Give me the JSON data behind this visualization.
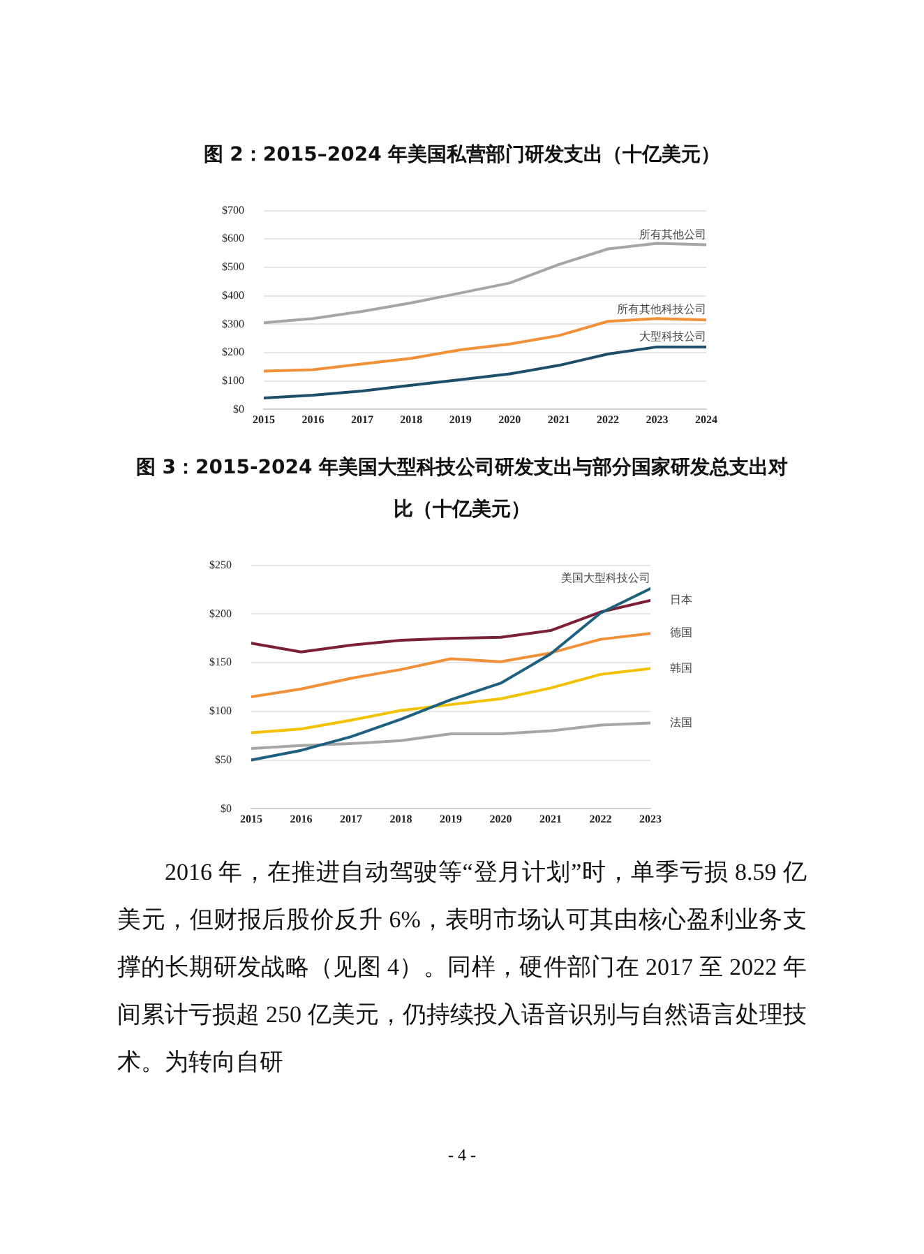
{
  "chart_data": [
    {
      "type": "line",
      "title": "图 2：2015–2024 年美国私营部门研发支出（十亿美元）",
      "x": [
        2015,
        2016,
        2017,
        2018,
        2019,
        2020,
        2021,
        2022,
        2023,
        2024
      ],
      "series": [
        {
          "name": "所有其他公司",
          "color": "#a6a6a6",
          "values": [
            305,
            320,
            345,
            375,
            410,
            445,
            510,
            565,
            585,
            580
          ]
        },
        {
          "name": "所有其他科技公司",
          "color": "#f0913a",
          "values": [
            135,
            140,
            160,
            180,
            210,
            230,
            260,
            310,
            320,
            315
          ]
        },
        {
          "name": "大型科技公司",
          "color": "#1f4e6b",
          "values": [
            40,
            50,
            65,
            85,
            105,
            125,
            155,
            195,
            220,
            220
          ]
        }
      ],
      "xlim": [
        2015,
        2024
      ],
      "xticks": [
        2015,
        2016,
        2017,
        2018,
        2019,
        2020,
        2021,
        2022,
        2023,
        2024
      ],
      "ylim": [
        0,
        700
      ],
      "yticks": [
        {
          "value": 0,
          "label": "$0"
        },
        {
          "value": 100,
          "label": "$100"
        },
        {
          "value": 200,
          "label": "$200"
        },
        {
          "value": 300,
          "label": "$300"
        },
        {
          "value": 400,
          "label": "$400"
        },
        {
          "value": 500,
          "label": "$500"
        },
        {
          "value": 600,
          "label": "$600"
        },
        {
          "value": 700,
          "label": "$700"
        }
      ],
      "grid": "y",
      "legend": false,
      "marker": "none",
      "line_style": "solid"
    },
    {
      "type": "line",
      "title": "图 3：2015-2024 年美国大型科技公司研发支出与部分国家研发总支出对比（十亿美元）",
      "x": [
        2015,
        2016,
        2017,
        2018,
        2019,
        2020,
        2021,
        2022,
        2023
      ],
      "series": [
        {
          "name": "美国大型科技公司",
          "color": "#1f5f7f",
          "values": [
            50,
            60,
            74,
            92,
            112,
            129,
            159,
            201,
            226
          ]
        },
        {
          "name": "日本",
          "color": "#7b2035",
          "values": [
            170,
            161,
            168,
            173,
            175,
            176,
            183,
            202,
            214
          ]
        },
        {
          "name": "德国",
          "color": "#f0913a",
          "values": [
            115,
            123,
            134,
            143,
            154,
            151,
            160,
            174,
            180
          ]
        },
        {
          "name": "韩国",
          "color": "#f2c200",
          "values": [
            78,
            82,
            91,
            101,
            107,
            113,
            124,
            138,
            144
          ]
        },
        {
          "name": "法国",
          "color": "#a6a6a6",
          "values": [
            62,
            65,
            67,
            70,
            77,
            77,
            80,
            86,
            88
          ]
        }
      ],
      "xlim": [
        2015,
        2023
      ],
      "xticks": [
        2015,
        2016,
        2017,
        2018,
        2019,
        2020,
        2021,
        2022,
        2023
      ],
      "ylim": [
        0,
        250
      ],
      "yticks": [
        {
          "value": 0,
          "label": "$0"
        },
        {
          "value": 50,
          "label": "$50"
        },
        {
          "value": 100,
          "label": "$100"
        },
        {
          "value": 150,
          "label": "$150"
        },
        {
          "value": 200,
          "label": "$200"
        },
        {
          "value": 250,
          "label": "$250"
        }
      ],
      "grid": "y",
      "legend": false,
      "marker": "none",
      "line_style": "solid",
      "annotations": [
        "2016 年，在推进自动驾驶等“登月计划”时，单季亏损 8.59 亿美元，但财报后股价反升 6%，表明市场认可其由核心盈利业务支撑的长期研发战略（见图 4）。同样，硬件部门在 2017 至 2022 年间累计亏损超 250 亿美元，仍持续投入语音识别与自然语言处理技术。为转向自研",
        "- 4 -"
      ]
    }
  ]
}
